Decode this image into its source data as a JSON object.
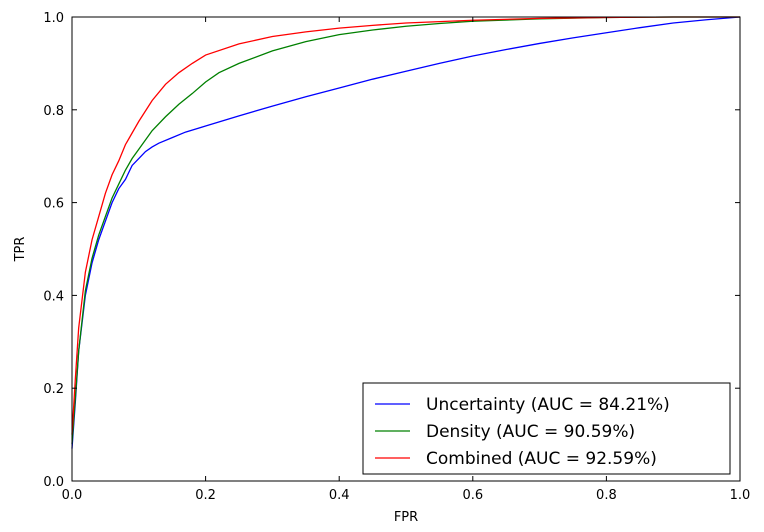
{
  "chart_data": {
    "type": "line",
    "title": "",
    "xlabel": "FPR",
    "ylabel": "TPR",
    "xlim": [
      0.0,
      1.0
    ],
    "ylim": [
      0.0,
      1.0
    ],
    "xticks": [
      "0.0",
      "0.2",
      "0.4",
      "0.6",
      "0.8",
      "1.0"
    ],
    "yticks": [
      "0.0",
      "0.2",
      "0.4",
      "0.6",
      "0.8",
      "1.0"
    ],
    "grid": false,
    "legend_position": "bottom-right",
    "series": [
      {
        "name": "Uncertainty (AUC = 84.21%)",
        "color": "#0000ff",
        "x": [
          0,
          0.005,
          0.01,
          0.02,
          0.03,
          0.04,
          0.05,
          0.06,
          0.07,
          0.08,
          0.09,
          0.1,
          0.11,
          0.12,
          0.13,
          0.15,
          0.17,
          0.2,
          0.25,
          0.3,
          0.35,
          0.4,
          0.45,
          0.5,
          0.55,
          0.6,
          0.65,
          0.7,
          0.75,
          0.8,
          0.85,
          0.9,
          0.95,
          1.0
        ],
        "y": [
          0.07,
          0.17,
          0.28,
          0.4,
          0.47,
          0.52,
          0.56,
          0.6,
          0.63,
          0.65,
          0.68,
          0.695,
          0.71,
          0.72,
          0.728,
          0.74,
          0.752,
          0.765,
          0.787,
          0.808,
          0.828,
          0.847,
          0.866,
          0.883,
          0.9,
          0.916,
          0.93,
          0.943,
          0.955,
          0.966,
          0.977,
          0.987,
          0.994,
          1.0
        ]
      },
      {
        "name": "Density (AUC = 90.59%)",
        "color": "#008000",
        "x": [
          0,
          0.005,
          0.01,
          0.02,
          0.03,
          0.04,
          0.05,
          0.06,
          0.07,
          0.08,
          0.09,
          0.1,
          0.12,
          0.14,
          0.16,
          0.18,
          0.2,
          0.22,
          0.25,
          0.3,
          0.35,
          0.4,
          0.45,
          0.5,
          0.55,
          0.6,
          0.7,
          0.8,
          0.9,
          1.0
        ],
        "y": [
          0.08,
          0.18,
          0.28,
          0.41,
          0.48,
          0.53,
          0.57,
          0.61,
          0.64,
          0.67,
          0.695,
          0.715,
          0.755,
          0.785,
          0.812,
          0.835,
          0.86,
          0.88,
          0.9,
          0.927,
          0.947,
          0.962,
          0.972,
          0.98,
          0.986,
          0.991,
          0.996,
          0.999,
          1.0,
          1.0
        ]
      },
      {
        "name": "Combined (AUC = 92.59%)",
        "color": "#ff0000",
        "x": [
          0,
          0.005,
          0.01,
          0.02,
          0.03,
          0.04,
          0.05,
          0.06,
          0.07,
          0.08,
          0.09,
          0.1,
          0.12,
          0.14,
          0.16,
          0.18,
          0.2,
          0.25,
          0.3,
          0.35,
          0.4,
          0.45,
          0.5,
          0.6,
          0.7,
          0.8,
          0.9,
          1.0
        ],
        "y": [
          0.1,
          0.22,
          0.33,
          0.45,
          0.52,
          0.57,
          0.62,
          0.66,
          0.69,
          0.725,
          0.75,
          0.775,
          0.82,
          0.855,
          0.88,
          0.9,
          0.918,
          0.942,
          0.958,
          0.968,
          0.976,
          0.982,
          0.987,
          0.993,
          0.997,
          0.999,
          1.0,
          1.0
        ]
      }
    ]
  }
}
